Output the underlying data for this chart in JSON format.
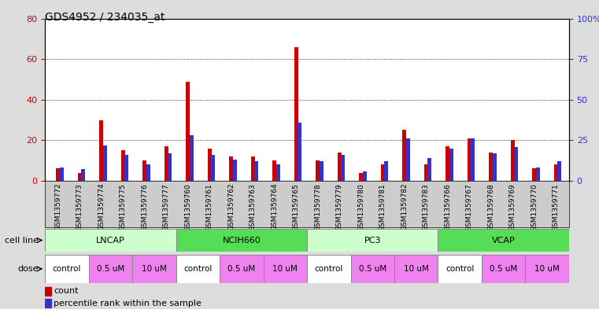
{
  "title": "GDS4952 / 234035_at",
  "samples": [
    "GSM1359772",
    "GSM1359773",
    "GSM1359774",
    "GSM1359775",
    "GSM1359776",
    "GSM1359777",
    "GSM1359760",
    "GSM1359761",
    "GSM1359762",
    "GSM1359763",
    "GSM1359764",
    "GSM1359765",
    "GSM1359778",
    "GSM1359779",
    "GSM1359780",
    "GSM1359781",
    "GSM1359782",
    "GSM1359783",
    "GSM1359766",
    "GSM1359767",
    "GSM1359768",
    "GSM1359769",
    "GSM1359770",
    "GSM1359771"
  ],
  "count_values": [
    6,
    4,
    30,
    15,
    10,
    17,
    49,
    16,
    12,
    12,
    10,
    66,
    10,
    14,
    4,
    8,
    25,
    8,
    17,
    21,
    14,
    20,
    6,
    8
  ],
  "percentile_values": [
    8,
    7,
    22,
    16,
    10,
    17,
    28,
    16,
    13,
    12,
    10,
    36,
    12,
    16,
    6,
    12,
    26,
    14,
    20,
    26,
    17,
    21,
    8,
    12
  ],
  "cell_line_groups": [
    {
      "name": "LNCAP",
      "start": 0,
      "end": 6,
      "color": "#ccffcc"
    },
    {
      "name": "NCIH660",
      "start": 6,
      "end": 12,
      "color": "#55dd55"
    },
    {
      "name": "PC3",
      "start": 12,
      "end": 18,
      "color": "#ccffcc"
    },
    {
      "name": "VCAP",
      "start": 18,
      "end": 24,
      "color": "#55dd55"
    }
  ],
  "dose_groups": [
    {
      "name": "control",
      "start": 0,
      "end": 2,
      "color": "#ffffff"
    },
    {
      "name": "0.5 uM",
      "start": 2,
      "end": 4,
      "color": "#ee82ee"
    },
    {
      "name": "10 uM",
      "start": 4,
      "end": 6,
      "color": "#ee82ee"
    },
    {
      "name": "control",
      "start": 6,
      "end": 8,
      "color": "#ffffff"
    },
    {
      "name": "0.5 uM",
      "start": 8,
      "end": 10,
      "color": "#ee82ee"
    },
    {
      "name": "10 uM",
      "start": 10,
      "end": 12,
      "color": "#ee82ee"
    },
    {
      "name": "control",
      "start": 12,
      "end": 14,
      "color": "#ffffff"
    },
    {
      "name": "0.5 uM",
      "start": 14,
      "end": 16,
      "color": "#ee82ee"
    },
    {
      "name": "10 uM",
      "start": 16,
      "end": 18,
      "color": "#ee82ee"
    },
    {
      "name": "control",
      "start": 18,
      "end": 20,
      "color": "#ffffff"
    },
    {
      "name": "0.5 uM",
      "start": 20,
      "end": 22,
      "color": "#ee82ee"
    },
    {
      "name": "10 uM",
      "start": 22,
      "end": 24,
      "color": "#ee82ee"
    }
  ],
  "ylim_left": [
    0,
    80
  ],
  "ylim_right": [
    0,
    100
  ],
  "yticks_left": [
    0,
    20,
    40,
    60,
    80
  ],
  "ytick_labels_left": [
    "0",
    "20",
    "40",
    "60",
    "80"
  ],
  "yticks_right": [
    0,
    25,
    50,
    75,
    100
  ],
  "ytick_labels_right": [
    "0",
    "25",
    "50",
    "75",
    "100%"
  ],
  "count_color": "#cc0000",
  "percentile_color": "#3333cc",
  "red_bar_width": 0.18,
  "blue_bar_width": 0.18,
  "bg_color": "#dddddd",
  "plot_bg_color": "#ffffff",
  "xtick_bg_color": "#cccccc",
  "grid_color": "#000000",
  "title_fontsize": 10,
  "tick_fontsize": 8,
  "label_fontsize": 8
}
